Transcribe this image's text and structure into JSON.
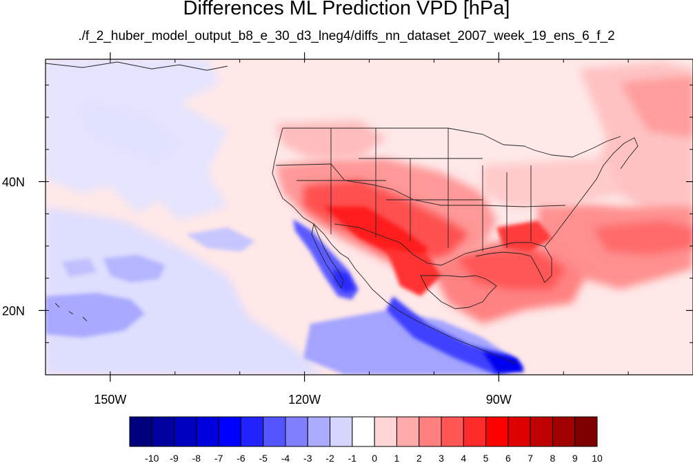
{
  "title": "Differences ML Prediction VPD [hPa]",
  "subtitle": "./f_2_huber_model_output_b8_e_30_d3_lneg4/diffs_nn_dataset_2007_week_19_ens_6_f_2",
  "map": {
    "lon_range": [
      -160,
      -60
    ],
    "lat_range": [
      10,
      59
    ],
    "lon_ticks": [
      {
        "value": -150,
        "label": "150W"
      },
      {
        "value": -120,
        "label": "120W"
      },
      {
        "value": -90,
        "label": "90W"
      }
    ],
    "lat_ticks": [
      {
        "value": 40,
        "label": "40N"
      },
      {
        "value": 20,
        "label": "20N"
      }
    ]
  },
  "colorbar": {
    "labels": [
      "-10",
      "-9",
      "-8",
      "-7",
      "-6",
      "-5",
      "-4",
      "-3",
      "-2",
      "-1",
      "0",
      "1",
      "2",
      "3",
      "4",
      "5",
      "6",
      "7",
      "8",
      "9",
      "10"
    ],
    "colors": [
      "#00007f",
      "#00009f",
      "#0000bf",
      "#0000df",
      "#0000ff",
      "#2222ff",
      "#5555ff",
      "#8080ff",
      "#aaaaff",
      "#d5d5ff",
      "#ffffff",
      "#ffd5d5",
      "#ffaaaa",
      "#ff8080",
      "#ff5555",
      "#ff2a2a",
      "#ff0000",
      "#df0000",
      "#bf0000",
      "#9f0000",
      "#7f0000"
    ]
  }
}
